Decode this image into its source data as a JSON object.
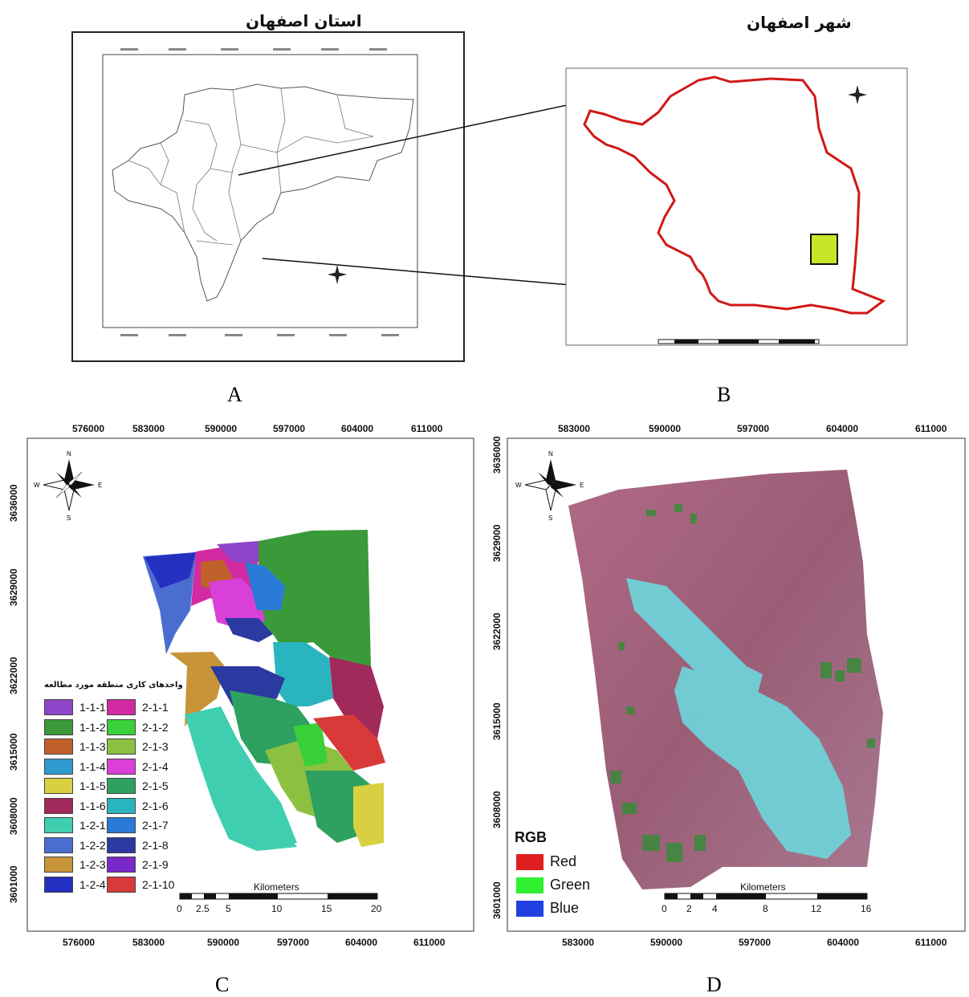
{
  "panels": {
    "a": {
      "letter": "A",
      "title": "استان اصفهان"
    },
    "b": {
      "letter": "B",
      "title": "شهر اصفهان"
    },
    "c": {
      "letter": "C",
      "legend_title": "واحدهای کاری منطقه مورد مطالعه",
      "legend_left": [
        {
          "label": "1-1-1",
          "color": "#8e44c8"
        },
        {
          "label": "1-1-2",
          "color": "#3a9a3a"
        },
        {
          "label": "1-1-3",
          "color": "#c0602a"
        },
        {
          "label": "1-1-4",
          "color": "#2f9ad0"
        },
        {
          "label": "1-1-5",
          "color": "#d8d040"
        },
        {
          "label": "1-1-6",
          "color": "#a02a5a"
        },
        {
          "label": "1-2-1",
          "color": "#3fcfb0"
        },
        {
          "label": "1-2-2",
          "color": "#4a6ed0"
        },
        {
          "label": "1-2-3",
          "color": "#c89438"
        },
        {
          "label": "1-2-4",
          "color": "#2430c0"
        }
      ],
      "legend_right": [
        {
          "label": "2-1-1",
          "color": "#d22aa0"
        },
        {
          "label": "2-1-2",
          "color": "#3ad03a"
        },
        {
          "label": "2-1-3",
          "color": "#8cc040"
        },
        {
          "label": "2-1-4",
          "color": "#d840d8"
        },
        {
          "label": "2-1-5",
          "color": "#2ea060"
        },
        {
          "label": "2-1-6",
          "color": "#2ab4c0"
        },
        {
          "label": "2-1-7",
          "color": "#2a7ad8"
        },
        {
          "label": "2-1-8",
          "color": "#2a3aa0"
        },
        {
          "label": "2-1-9",
          "color": "#7a28c8"
        },
        {
          "label": "2-1-10",
          "color": "#d83a3a"
        }
      ],
      "scale_title": "Kilometers",
      "scale_labels": [
        "0",
        "2.5",
        "5",
        "10",
        "15",
        "20"
      ],
      "x_ticks": [
        "576000",
        "583000",
        "590000",
        "597000",
        "604000",
        "611000"
      ],
      "y_ticks": [
        "3636000",
        "3629000",
        "3622000",
        "3615000",
        "3608000",
        "3601000"
      ]
    },
    "d": {
      "letter": "D",
      "legend_title": "RGB",
      "bands": [
        {
          "label": "Red",
          "color": "#e02020"
        },
        {
          "label": "Green",
          "color": "#30f030"
        },
        {
          "label": "Blue",
          "color": "#2040e0"
        }
      ],
      "scale_title": "Kilometers",
      "scale_labels": [
        "0",
        "2",
        "4",
        "8",
        "12",
        "16"
      ],
      "x_ticks": [
        "583000",
        "590000",
        "597000",
        "604000",
        "611000"
      ],
      "y_ticks": [
        "3636000",
        "3629000",
        "3622000",
        "3615000",
        "3608000",
        "3601000"
      ]
    }
  }
}
